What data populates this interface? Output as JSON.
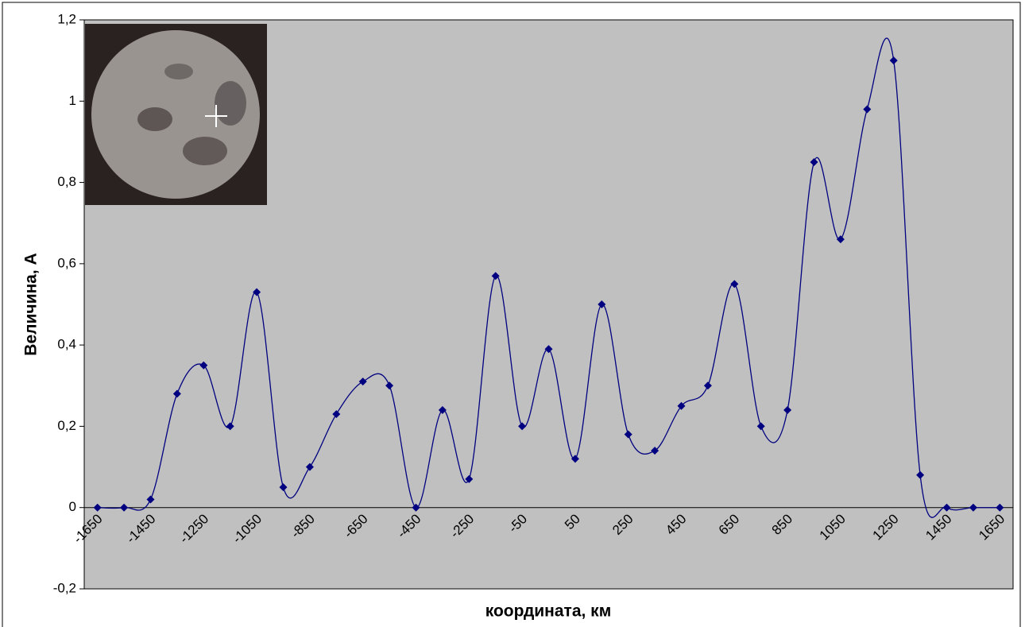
{
  "chart_data": {
    "type": "line",
    "y_label": "Величина, А",
    "x_label": "координата, км",
    "categories": [
      "-1650",
      null,
      "-1450",
      null,
      "-1250",
      null,
      "-1050",
      null,
      "-850",
      null,
      "-650",
      null,
      "-450",
      null,
      "-250",
      null,
      "-50",
      null,
      "50",
      null,
      "250",
      null,
      "450",
      null,
      "650",
      null,
      "850",
      null,
      "1050",
      null,
      "1250",
      null,
      "1450",
      null,
      "1650"
    ],
    "series": [
      {
        "color": "#000080",
        "values": [
          0,
          0,
          0.02,
          0.28,
          0.35,
          0.2,
          0.53,
          0.05,
          0.1,
          0.23,
          0.31,
          0.3,
          0,
          0.24,
          0.07,
          0.57,
          0.2,
          0.39,
          0.12,
          0.5,
          0.18,
          0.14,
          0.25,
          0.3,
          0.55,
          0.2,
          0.24,
          0.85,
          0.66,
          0.98,
          1.1,
          0.08,
          0,
          0,
          0
        ]
      }
    ],
    "ylim": [
      -0.2,
      1.2
    ],
    "yticks": [
      {
        "value": -0.2,
        "label": "-0,2"
      },
      0,
      {
        "value": 0.2,
        "label": "0,2"
      },
      {
        "value": 0.4,
        "label": "0,4"
      },
      {
        "value": 0.6,
        "label": "0,6"
      },
      {
        "value": 0.8,
        "label": "0,8"
      },
      1,
      {
        "value": 1.2,
        "label": "1,2"
      }
    ],
    "smooth": true,
    "plot_background": "#c0c0c0"
  }
}
